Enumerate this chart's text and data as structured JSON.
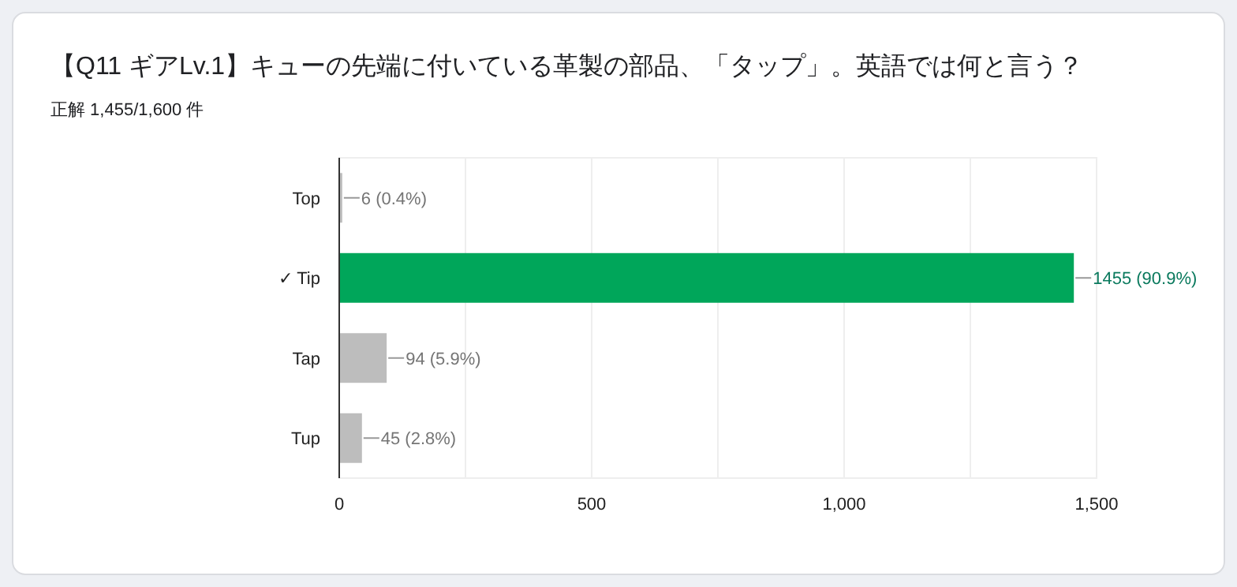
{
  "chart_data": {
    "type": "bar",
    "orientation": "horizontal",
    "title": "【Q11 ギアLv.1】キューの先端に付いている革製の部品、「タップ」。英語では何と言う？",
    "subtitle": "正解 1,455/1,600 件",
    "categories": [
      "Top",
      "✓ Tip",
      "Tap",
      "Tup"
    ],
    "values": [
      6,
      1455,
      94,
      45
    ],
    "colors": [
      "#bdbdbd",
      "#00a65a",
      "#bdbdbd",
      "#bdbdbd"
    ],
    "value_labels": [
      "6 (0.4%)",
      "1455 (90.9%)",
      "94 (5.9%)",
      "45 (2.8%)"
    ],
    "xlim": [
      0,
      1500
    ],
    "xticks": [
      0,
      {
        "value": 250,
        "label": null
      },
      500,
      {
        "value": 750,
        "label": null
      },
      {
        "value": 1000,
        "label": "1,000"
      },
      {
        "value": 1250,
        "label": null
      },
      {
        "value": 1500,
        "label": "1,500"
      }
    ],
    "grid": "x"
  }
}
